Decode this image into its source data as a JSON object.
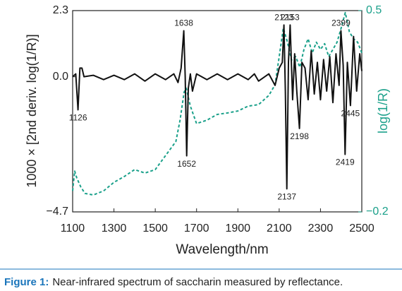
{
  "chart_data": {
    "type": "line",
    "xlabel": "Wavelength/nm",
    "ylabel": "1000 × [2nd deriv. log(1/R)]",
    "y2label": "log(1/R)",
    "xlim": [
      1100,
      2500
    ],
    "xticks": [
      1100,
      1300,
      1500,
      1700,
      1900,
      2100,
      2300,
      2500
    ],
    "ylim": [
      -4.7,
      2.3
    ],
    "yticks": [
      2.3,
      {
        "value": 0,
        "label": "0.0"
      },
      {
        "value": -4.7,
        "label": "−4.7"
      }
    ],
    "y2lim": [
      -0.2,
      0.5
    ],
    "y2ticks": [
      0.5,
      {
        "value": -0.2,
        "label": "−0.2"
      }
    ],
    "peak_labels": [
      1126,
      1638,
      1652,
      2123,
      2137,
      2153,
      2198,
      2399,
      2419,
      2445
    ],
    "series": [
      {
        "name": "1000 × [2nd deriv. log(1/R)]",
        "color": "#111111",
        "axis": "y",
        "x": [
          1100,
          1115,
          1126,
          1135,
          1145,
          1155,
          1200,
          1250,
          1300,
          1350,
          1400,
          1450,
          1500,
          1550,
          1590,
          1610,
          1625,
          1638,
          1645,
          1652,
          1660,
          1670,
          1680,
          1700,
          1750,
          1800,
          1850,
          1900,
          1950,
          1980,
          2000,
          2050,
          2080,
          2100,
          2115,
          2123,
          2130,
          2137,
          2145,
          2153,
          2165,
          2175,
          2185,
          2198,
          2210,
          2225,
          2240,
          2255,
          2270,
          2285,
          2300,
          2315,
          2330,
          2345,
          2360,
          2375,
          2390,
          2399,
          2410,
          2419,
          2430,
          2445,
          2460,
          2475,
          2490,
          2500
        ],
        "values": [
          0.0,
          0.1,
          -1.15,
          0.3,
          0.3,
          0.0,
          0.05,
          -0.1,
          0.05,
          -0.1,
          0.1,
          -0.15,
          0.1,
          -0.1,
          0.1,
          -0.2,
          0.3,
          1.6,
          0.0,
          -2.75,
          -0.4,
          0.1,
          -0.5,
          0.1,
          -0.1,
          0.1,
          -0.1,
          0.1,
          -0.1,
          0.1,
          -0.15,
          0.1,
          -0.3,
          0.3,
          0.5,
          1.8,
          -0.5,
          -3.9,
          0.5,
          1.8,
          -0.8,
          0.8,
          -0.5,
          -1.8,
          0.5,
          0.3,
          -0.8,
          0.9,
          -0.6,
          0.5,
          -0.8,
          0.6,
          -0.5,
          0.7,
          -0.9,
          0.8,
          -0.3,
          1.6,
          0.4,
          -2.7,
          0.5,
          -1.0,
          1.4,
          -0.5,
          0.8,
          0.2
        ]
      },
      {
        "name": "log(1/R)",
        "color": "#1aa08a",
        "axis": "y2",
        "x": [
          1100,
          1110,
          1120,
          1140,
          1160,
          1200,
          1250,
          1300,
          1350,
          1400,
          1450,
          1500,
          1550,
          1600,
          1620,
          1640,
          1650,
          1670,
          1700,
          1750,
          1800,
          1850,
          1900,
          1950,
          2000,
          2050,
          2080,
          2100,
          2120,
          2140,
          2160,
          2180,
          2200,
          2220,
          2240,
          2260,
          2280,
          2300,
          2320,
          2340,
          2360,
          2380,
          2400,
          2420,
          2440,
          2460,
          2480,
          2500
        ],
        "values": [
          -0.127,
          -0.058,
          -0.082,
          -0.114,
          -0.136,
          -0.141,
          -0.127,
          -0.097,
          -0.077,
          -0.053,
          -0.065,
          -0.053,
          -0.004,
          0.045,
          0.119,
          0.217,
          0.23,
          0.168,
          0.107,
          0.119,
          0.139,
          0.144,
          0.151,
          0.168,
          0.173,
          0.205,
          0.242,
          0.34,
          0.439,
          0.39,
          0.328,
          0.34,
          0.303,
          0.365,
          0.402,
          0.353,
          0.39,
          0.365,
          0.385,
          0.34,
          0.365,
          0.39,
          0.439,
          0.493,
          0.426,
          0.402,
          0.39,
          0.353
        ]
      }
    ],
    "caption": {
      "label": "Figure 1:",
      "text": "Near-infrared spectrum of saccharin measured by reflectance."
    }
  }
}
